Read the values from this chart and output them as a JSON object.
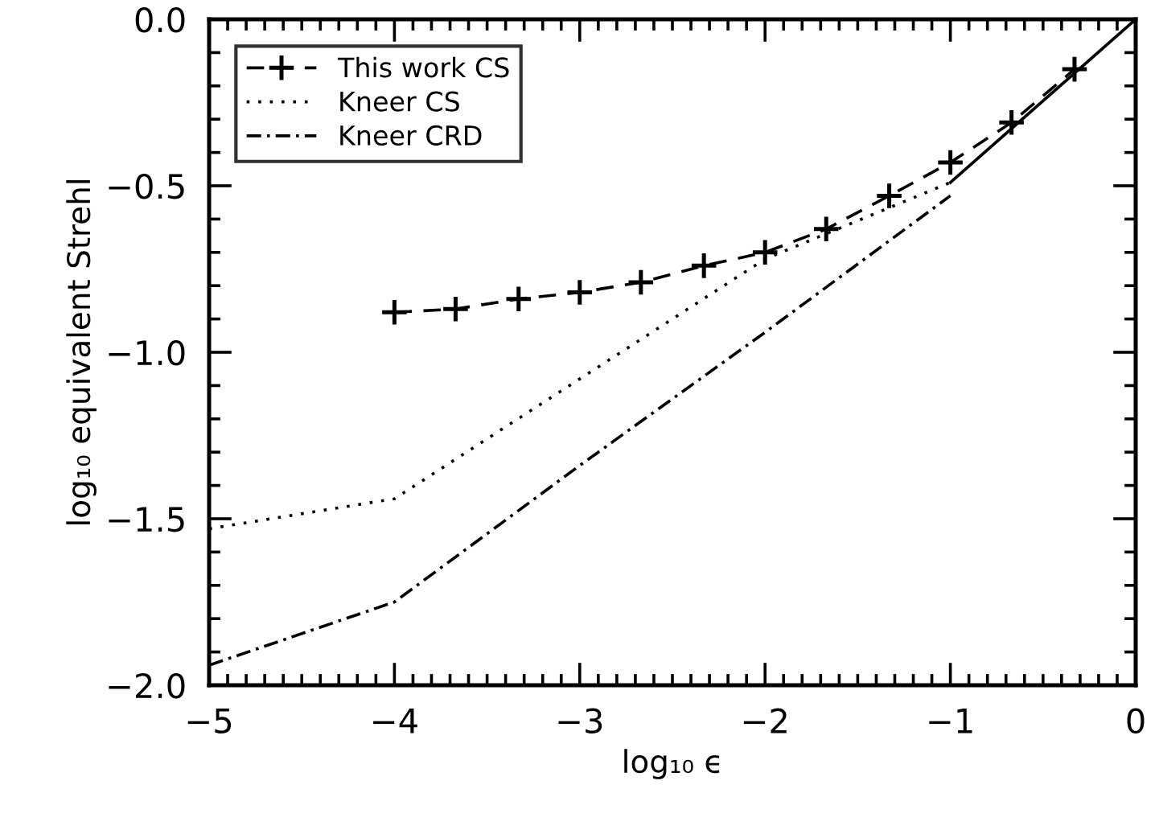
{
  "chart_data": {
    "type": "line",
    "xlabel": "log₁₀ ϵ",
    "ylabel": "log₁₀ equivalent Strehl",
    "xlim": [
      -5,
      0
    ],
    "ylim": [
      -2.0,
      0.0
    ],
    "xticks": [
      {
        "value": -5,
        "label": "−5"
      },
      {
        "value": -4,
        "label": "−4"
      },
      {
        "value": -3,
        "label": "−3"
      },
      {
        "value": -2,
        "label": "−2"
      },
      {
        "value": -1,
        "label": "−1"
      },
      0,
      {
        "value": -4.9,
        "label": null
      },
      {
        "value": -4.8,
        "label": null
      },
      {
        "value": -4.7,
        "label": null
      },
      {
        "value": -4.6,
        "label": null
      },
      {
        "value": -4.5,
        "label": null
      },
      {
        "value": -4.4,
        "label": null
      },
      {
        "value": -4.3,
        "label": null
      },
      {
        "value": -4.2,
        "label": null
      },
      {
        "value": -4.1,
        "label": null
      },
      {
        "value": -3.9,
        "label": null
      },
      {
        "value": -3.8,
        "label": null
      },
      {
        "value": -3.7,
        "label": null
      },
      {
        "value": -3.6,
        "label": null
      },
      {
        "value": -3.5,
        "label": null
      },
      {
        "value": -3.4,
        "label": null
      },
      {
        "value": -3.3,
        "label": null
      },
      {
        "value": -3.2,
        "label": null
      },
      {
        "value": -3.1,
        "label": null
      },
      {
        "value": -2.9,
        "label": null
      },
      {
        "value": -2.8,
        "label": null
      },
      {
        "value": -2.7,
        "label": null
      },
      {
        "value": -2.6,
        "label": null
      },
      {
        "value": -2.5,
        "label": null
      },
      {
        "value": -2.4,
        "label": null
      },
      {
        "value": -2.3,
        "label": null
      },
      {
        "value": -2.2,
        "label": null
      },
      {
        "value": -2.1,
        "label": null
      },
      {
        "value": -1.9,
        "label": null
      },
      {
        "value": -1.8,
        "label": null
      },
      {
        "value": -1.7,
        "label": null
      },
      {
        "value": -1.6,
        "label": null
      },
      {
        "value": -1.5,
        "label": null
      },
      {
        "value": -1.4,
        "label": null
      },
      {
        "value": -1.3,
        "label": null
      },
      {
        "value": -1.2,
        "label": null
      },
      {
        "value": -1.1,
        "label": null
      },
      {
        "value": -0.9,
        "label": null
      },
      {
        "value": -0.8,
        "label": null
      },
      {
        "value": -0.7,
        "label": null
      },
      {
        "value": -0.6,
        "label": null
      },
      {
        "value": -0.5,
        "label": null
      },
      {
        "value": -0.4,
        "label": null
      },
      {
        "value": -0.3,
        "label": null
      },
      {
        "value": -0.2,
        "label": null
      },
      {
        "value": -0.1,
        "label": null
      }
    ],
    "yticks": [
      {
        "value": -2.0,
        "label": "−2.0"
      },
      {
        "value": -1.5,
        "label": "−1.5"
      },
      {
        "value": -1.0,
        "label": "−1.0"
      },
      {
        "value": -0.5,
        "label": "−0.5"
      },
      {
        "value": 0.0,
        "label": "0.0"
      },
      {
        "value": -1.9,
        "label": null
      },
      {
        "value": -1.8,
        "label": null
      },
      {
        "value": -1.7,
        "label": null
      },
      {
        "value": -1.6,
        "label": null
      },
      {
        "value": -1.4,
        "label": null
      },
      {
        "value": -1.3,
        "label": null
      },
      {
        "value": -1.2,
        "label": null
      },
      {
        "value": -1.1,
        "label": null
      },
      {
        "value": -0.9,
        "label": null
      },
      {
        "value": -0.8,
        "label": null
      },
      {
        "value": -0.7,
        "label": null
      },
      {
        "value": -0.6,
        "label": null
      },
      {
        "value": -0.4,
        "label": null
      },
      {
        "value": -0.3,
        "label": null
      },
      {
        "value": -0.2,
        "label": null
      },
      {
        "value": -0.1,
        "label": null
      }
    ],
    "grid": false,
    "legend": "top left",
    "series": [
      {
        "name": "This work CS",
        "color": "#000000",
        "marker": "cross",
        "line_style": "dashed",
        "x": [
          -4,
          -3.67,
          -3.33,
          -3,
          -2.67,
          -2.33,
          -2,
          -1.67,
          -1.33,
          -1,
          -0.67,
          -0.33
        ],
        "values": [
          -0.88,
          -0.87,
          -0.84,
          -0.82,
          -0.79,
          -0.74,
          -0.7,
          -0.63,
          -0.53,
          -0.43,
          -0.31,
          -0.15
        ]
      },
      {
        "name": "Kneer CS",
        "color": "#000000",
        "marker": "none",
        "line_style": "dotted",
        "x": [
          -5,
          -4,
          -3,
          -2,
          -1
        ],
        "values": [
          -1.53,
          -1.44,
          -1.08,
          -0.72,
          -0.49
        ]
      },
      {
        "name": "Kneer CRD",
        "color": "#000000",
        "marker": "none",
        "line_style": "dashdot",
        "x": [
          -5,
          -4,
          -3,
          -2,
          -1
        ],
        "values": [
          -1.94,
          -1.75,
          -1.34,
          -0.94,
          -0.53
        ]
      },
      {
        "color": "#000000",
        "marker": "none",
        "line_style": "solid",
        "x": [
          -1,
          0
        ],
        "values": [
          -0.49,
          0.0
        ]
      }
    ]
  }
}
